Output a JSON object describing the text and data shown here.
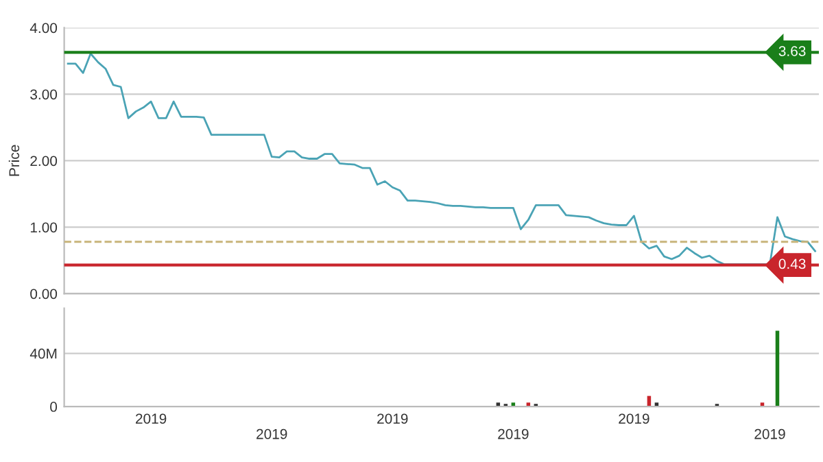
{
  "chart_data": [
    {
      "type": "line",
      "ylabel": "Price",
      "ylim": [
        0,
        4
      ],
      "categories": [
        null,
        null,
        null,
        null,
        null,
        null,
        null,
        null,
        null,
        null,
        null,
        "2019",
        null,
        null,
        null,
        null,
        null,
        null,
        null,
        null,
        null,
        null,
        null,
        null,
        null,
        null,
        null,
        "2019",
        null,
        null,
        null,
        null,
        null,
        null,
        null,
        null,
        null,
        null,
        null,
        null,
        null,
        null,
        null,
        "2019",
        null,
        null,
        null,
        null,
        null,
        null,
        null,
        null,
        null,
        null,
        null,
        null,
        null,
        null,
        null,
        "2019",
        null,
        null,
        null,
        null,
        null,
        null,
        null,
        null,
        null,
        null,
        null,
        null,
        null,
        null,
        null,
        "2019",
        null,
        null,
        null,
        null,
        null,
        null,
        null,
        null,
        null,
        null,
        null,
        null,
        null,
        null,
        null,
        null,
        null,
        "2019",
        null,
        null,
        null,
        null,
        null,
        null
      ],
      "yticks": [
        {
          "value": 0,
          "label": "0.00"
        },
        {
          "value": 1,
          "label": "1.00"
        },
        {
          "value": 2,
          "label": "2.00"
        },
        {
          "value": 3,
          "label": "3.00"
        },
        {
          "value": 4,
          "label": "4.00"
        }
      ],
      "tick_labels": "y",
      "grid": "y",
      "series": [
        {
          "color": "#4aa3b5",
          "values": [
            3.46,
            3.46,
            3.32,
            3.61,
            3.48,
            3.38,
            3.14,
            3.11,
            2.64,
            2.74,
            2.8,
            2.89,
            2.64,
            2.64,
            2.89,
            2.66,
            2.66,
            2.66,
            2.65,
            2.39,
            2.39,
            2.39,
            2.39,
            2.39,
            2.39,
            2.39,
            2.39,
            2.06,
            2.05,
            2.14,
            2.14,
            2.05,
            2.03,
            2.03,
            2.1,
            2.1,
            1.96,
            1.95,
            1.94,
            1.89,
            1.89,
            1.64,
            1.69,
            1.6,
            1.55,
            1.4,
            1.4,
            1.39,
            1.38,
            1.36,
            1.33,
            1.32,
            1.32,
            1.31,
            1.3,
            1.3,
            1.29,
            1.29,
            1.29,
            1.29,
            0.97,
            1.11,
            1.33,
            1.33,
            1.33,
            1.33,
            1.18,
            1.17,
            1.16,
            1.15,
            1.1,
            1.06,
            1.04,
            1.03,
            1.03,
            1.17,
            0.78,
            0.68,
            0.72,
            0.56,
            0.52,
            0.57,
            0.69,
            0.61,
            0.54,
            0.57,
            0.49,
            0.44,
            0.44,
            0.44,
            0.44,
            0.44,
            0.44,
            0.44,
            1.15,
            0.86,
            0.82,
            0.79,
            0.78,
            0.64
          ]
        }
      ],
      "ref_lines": [
        {
          "axis": "y",
          "value": 3.63,
          "label": "3.63",
          "color": "#1a7f1a"
        },
        {
          "axis": "y",
          "value": 0.43,
          "label": "0.43",
          "color": "#c9252c"
        },
        {
          "axis": "y",
          "value": 0.78,
          "color": "#c8b47a",
          "line_style": "dashed"
        }
      ]
    },
    {
      "type": "bar",
      "ylim": [
        0,
        74
      ],
      "categories": [
        null,
        null,
        null,
        null,
        null,
        null,
        null,
        null,
        null,
        null,
        null,
        "2019",
        null,
        null,
        null,
        null,
        null,
        null,
        null,
        null,
        null,
        null,
        null,
        null,
        null,
        null,
        null,
        "2019",
        null,
        null,
        null,
        null,
        null,
        null,
        null,
        null,
        null,
        null,
        null,
        null,
        null,
        null,
        null,
        "2019",
        null,
        null,
        null,
        null,
        null,
        null,
        null,
        null,
        null,
        null,
        null,
        null,
        null,
        null,
        null,
        "2019",
        null,
        null,
        null,
        null,
        null,
        null,
        null,
        null,
        null,
        null,
        null,
        null,
        null,
        null,
        null,
        "2019",
        null,
        null,
        null,
        null,
        null,
        null,
        null,
        null,
        null,
        null,
        null,
        null,
        null,
        null,
        null,
        null,
        null,
        "2019",
        null,
        null,
        null,
        null,
        null,
        null
      ],
      "yticks": [
        0,
        {
          "value": 40,
          "label": "40M"
        }
      ],
      "grid": "y",
      "values": [
        null,
        null,
        null,
        null,
        null,
        null,
        null,
        null,
        null,
        null,
        null,
        null,
        null,
        null,
        null,
        null,
        null,
        null,
        null,
        null,
        null,
        null,
        null,
        null,
        null,
        null,
        null,
        null,
        null,
        null,
        null,
        null,
        null,
        null,
        null,
        null,
        null,
        null,
        null,
        null,
        null,
        null,
        null,
        null,
        null,
        null,
        null,
        null,
        null,
        null,
        null,
        null,
        null,
        null,
        null,
        null,
        null,
        3,
        2,
        3,
        null,
        3,
        2,
        null,
        null,
        null,
        null,
        null,
        null,
        null,
        null,
        null,
        null,
        null,
        null,
        null,
        null,
        8,
        3,
        null,
        null,
        null,
        null,
        null,
        null,
        null,
        2,
        null,
        null,
        null,
        null,
        null,
        3,
        null,
        57,
        null,
        null,
        null,
        null,
        null
      ],
      "colors": [
        null,
        null,
        null,
        null,
        null,
        null,
        null,
        null,
        null,
        null,
        null,
        null,
        null,
        null,
        null,
        null,
        null,
        null,
        null,
        null,
        null,
        null,
        null,
        null,
        null,
        null,
        null,
        null,
        null,
        null,
        null,
        null,
        null,
        null,
        null,
        null,
        null,
        null,
        null,
        null,
        null,
        null,
        null,
        null,
        null,
        null,
        null,
        null,
        null,
        null,
        null,
        null,
        null,
        null,
        null,
        null,
        null,
        "#333333",
        "#333333",
        "#1a7f1a",
        null,
        "#c9252c",
        "#333333",
        null,
        null,
        null,
        null,
        null,
        null,
        null,
        null,
        null,
        null,
        null,
        null,
        null,
        null,
        "#c9252c",
        "#333333",
        null,
        null,
        null,
        null,
        null,
        null,
        null,
        "#333333",
        null,
        null,
        null,
        null,
        null,
        "#c9252c",
        null,
        "#1a7f1a",
        null,
        null,
        null,
        null,
        null
      ]
    }
  ]
}
